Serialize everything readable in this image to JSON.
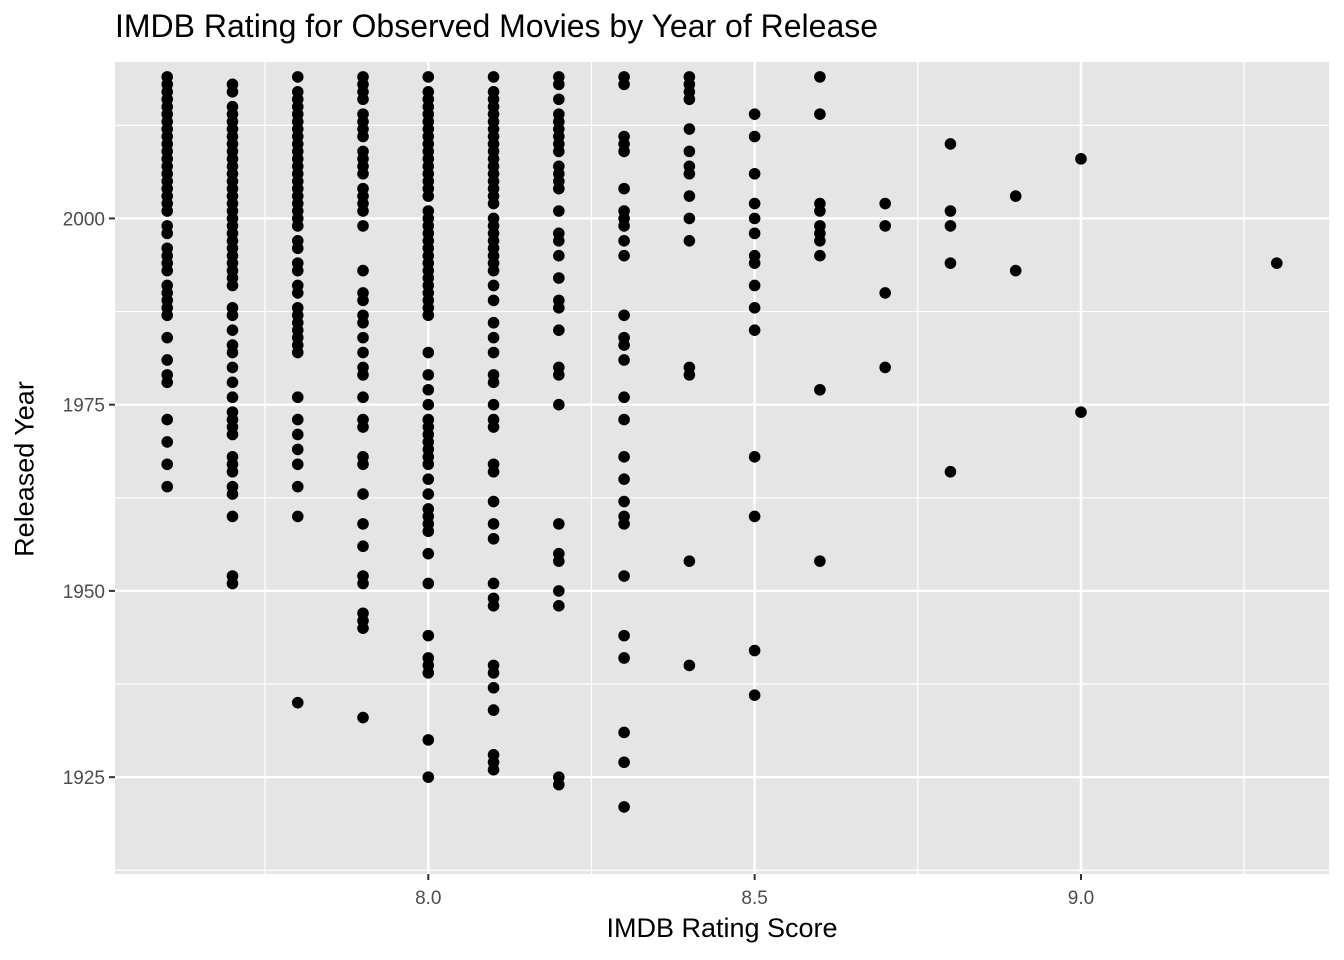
{
  "chart_data": {
    "type": "scatter",
    "title": "IMDB Rating for Observed Movies by Year of Release",
    "xlabel": "IMDB Rating Score",
    "ylabel": "Released Year",
    "xlim": [
      7.52,
      9.38
    ],
    "ylim": [
      1912,
      2021
    ],
    "x_ticks": [
      8.0,
      8.5,
      9.0
    ],
    "x_tick_labels": [
      "8.0",
      "8.5",
      "9.0"
    ],
    "y_ticks": [
      1925,
      1950,
      1975,
      2000
    ],
    "y_tick_labels": [
      "1925",
      "1950",
      "1975",
      "2000"
    ],
    "grid": true,
    "legend": "none",
    "colors": {
      "panel": "#E5E5E5",
      "grid": "#FFFFFF",
      "point": "#000000",
      "tick": "#4D4D4D"
    },
    "series": [
      {
        "x": 7.6,
        "years": [
          2019,
          2018,
          2017,
          2016,
          2015,
          2014,
          2013,
          2012,
          2011,
          2010,
          2009,
          2008,
          2007,
          2006,
          2005,
          2004,
          2003,
          2002,
          2001,
          1999,
          1998,
          1996,
          1995,
          1994,
          1993,
          1991,
          1990,
          1989,
          1988,
          1987,
          1984,
          1981,
          1979,
          1978,
          1973,
          1970,
          1967,
          1964
        ]
      },
      {
        "x": 7.7,
        "years": [
          2018,
          2017,
          2015,
          2014,
          2013,
          2012,
          2011,
          2010,
          2009,
          2008,
          2007,
          2006,
          2005,
          2004,
          2003,
          2002,
          2001,
          2000,
          1999,
          1998,
          1997,
          1996,
          1995,
          1994,
          1993,
          1992,
          1991,
          1988,
          1987,
          1985,
          1983,
          1982,
          1980,
          1978,
          1976,
          1974,
          1973,
          1972,
          1971,
          1968,
          1967,
          1966,
          1964,
          1963,
          1960,
          1952,
          1951
        ]
      },
      {
        "x": 7.8,
        "years": [
          2019,
          2017,
          2016,
          2015,
          2014,
          2013,
          2012,
          2011,
          2010,
          2009,
          2008,
          2007,
          2006,
          2005,
          2004,
          2003,
          2002,
          2001,
          2000,
          1999,
          1997,
          1996,
          1994,
          1993,
          1991,
          1990,
          1988,
          1987,
          1986,
          1985,
          1984,
          1983,
          1982,
          1976,
          1973,
          1971,
          1969,
          1967,
          1964,
          1960,
          1935
        ]
      },
      {
        "x": 7.9,
        "years": [
          2019,
          2018,
          2017,
          2016,
          2014,
          2013,
          2012,
          2011,
          2009,
          2008,
          2007,
          2006,
          2004,
          2003,
          2002,
          2001,
          1999,
          1993,
          1990,
          1989,
          1987,
          1986,
          1984,
          1982,
          1980,
          1979,
          1976,
          1973,
          1972,
          1968,
          1967,
          1963,
          1959,
          1956,
          1952,
          1951,
          1947,
          1946,
          1945,
          1933
        ]
      },
      {
        "x": 8.0,
        "years": [
          2019,
          2017,
          2016,
          2015,
          2014,
          2013,
          2012,
          2011,
          2010,
          2009,
          2008,
          2007,
          2006,
          2005,
          2004,
          2003,
          2001,
          2000,
          1999,
          1998,
          1997,
          1996,
          1995,
          1994,
          1993,
          1992,
          1991,
          1990,
          1989,
          1988,
          1987,
          1982,
          1979,
          1977,
          1975,
          1973,
          1972,
          1971,
          1970,
          1969,
          1968,
          1967,
          1965,
          1963,
          1961,
          1960,
          1959,
          1958,
          1955,
          1951,
          1944,
          1941,
          1940,
          1939,
          1930,
          1925
        ]
      },
      {
        "x": 8.1,
        "years": [
          2019,
          2017,
          2016,
          2015,
          2014,
          2013,
          2012,
          2011,
          2010,
          2009,
          2008,
          2007,
          2006,
          2005,
          2004,
          2003,
          2002,
          2000,
          1999,
          1998,
          1997,
          1996,
          1995,
          1994,
          1993,
          1991,
          1989,
          1986,
          1984,
          1982,
          1979,
          1978,
          1975,
          1973,
          1972,
          1967,
          1966,
          1962,
          1959,
          1957,
          1951,
          1949,
          1948,
          1940,
          1939,
          1937,
          1934,
          1928,
          1927,
          1926
        ]
      },
      {
        "x": 8.2,
        "years": [
          2019,
          2018,
          2016,
          2014,
          2013,
          2012,
          2011,
          2010,
          2009,
          2007,
          2006,
          2005,
          2004,
          2001,
          1998,
          1997,
          1995,
          1992,
          1989,
          1988,
          1985,
          1980,
          1979,
          1975,
          1959,
          1955,
          1954,
          1950,
          1948,
          1925,
          1924
        ]
      },
      {
        "x": 8.3,
        "years": [
          2019,
          2018,
          2011,
          2010,
          2009,
          2004,
          2001,
          2000,
          1999,
          1997,
          1995,
          1987,
          1984,
          1983,
          1981,
          1976,
          1973,
          1968,
          1965,
          1962,
          1960,
          1959,
          1952,
          1944,
          1941,
          1931,
          1927,
          1921
        ]
      },
      {
        "x": 8.4,
        "years": [
          2019,
          2018,
          2017,
          2016,
          2012,
          2009,
          2007,
          2006,
          2003,
          2000,
          1997,
          1980,
          1979,
          1954,
          1940
        ]
      },
      {
        "x": 8.5,
        "years": [
          2014,
          2011,
          2006,
          2002,
          2000,
          1998,
          1995,
          1994,
          1991,
          1988,
          1985,
          1968,
          1960,
          1942,
          1936
        ]
      },
      {
        "x": 8.6,
        "years": [
          2019,
          2014,
          2002,
          2001,
          1999,
          1998,
          1997,
          1995,
          1977,
          1954
        ]
      },
      {
        "x": 8.7,
        "years": [
          2002,
          1999,
          1990,
          1980
        ]
      },
      {
        "x": 8.8,
        "years": [
          2010,
          2001,
          1999,
          1994,
          1966
        ]
      },
      {
        "x": 8.9,
        "years": [
          2003,
          1993
        ]
      },
      {
        "x": 9.0,
        "years": [
          2008,
          1974
        ]
      },
      {
        "x": 9.3,
        "years": [
          1994
        ]
      }
    ]
  }
}
